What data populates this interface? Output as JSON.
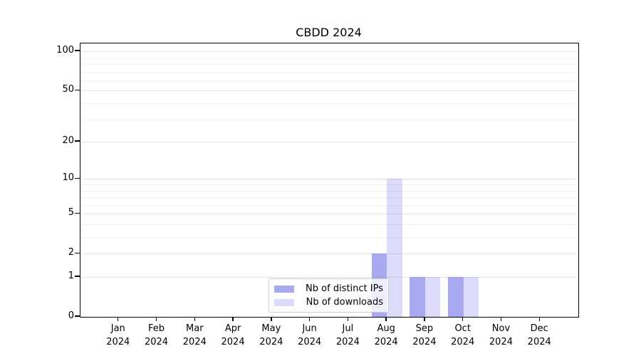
{
  "chart_data": {
    "type": "bar",
    "title": "CBDD 2024",
    "categories": [
      "Jan",
      "Feb",
      "Mar",
      "Apr",
      "May",
      "Jun",
      "Jul",
      "Aug",
      "Sep",
      "Oct",
      "Nov",
      "Dec"
    ],
    "category_year": "2024",
    "series": [
      {
        "name": "Nb of distinct IPs",
        "color": "#a9a9f2",
        "values": [
          0,
          0,
          0,
          0,
          0,
          0,
          0,
          2,
          1,
          1,
          0,
          0
        ]
      },
      {
        "name": "Nb of downloads",
        "color": "#dcdcfa",
        "values": [
          0,
          0,
          0,
          0,
          0,
          0,
          0,
          10,
          1,
          1,
          0,
          0
        ]
      }
    ],
    "y_scale": "log1p",
    "y_ticks": [
      0,
      1,
      2,
      5,
      10,
      20,
      50,
      100
    ],
    "y_minor_gridlines": [
      3,
      4,
      6,
      7,
      8,
      9,
      30,
      40,
      60,
      70,
      80,
      90
    ],
    "y_max": 115,
    "xlabel": "",
    "ylabel": "",
    "grid": true,
    "legend_position": "lower center",
    "axis_color": "#000000",
    "background_color": "#ffffff"
  }
}
